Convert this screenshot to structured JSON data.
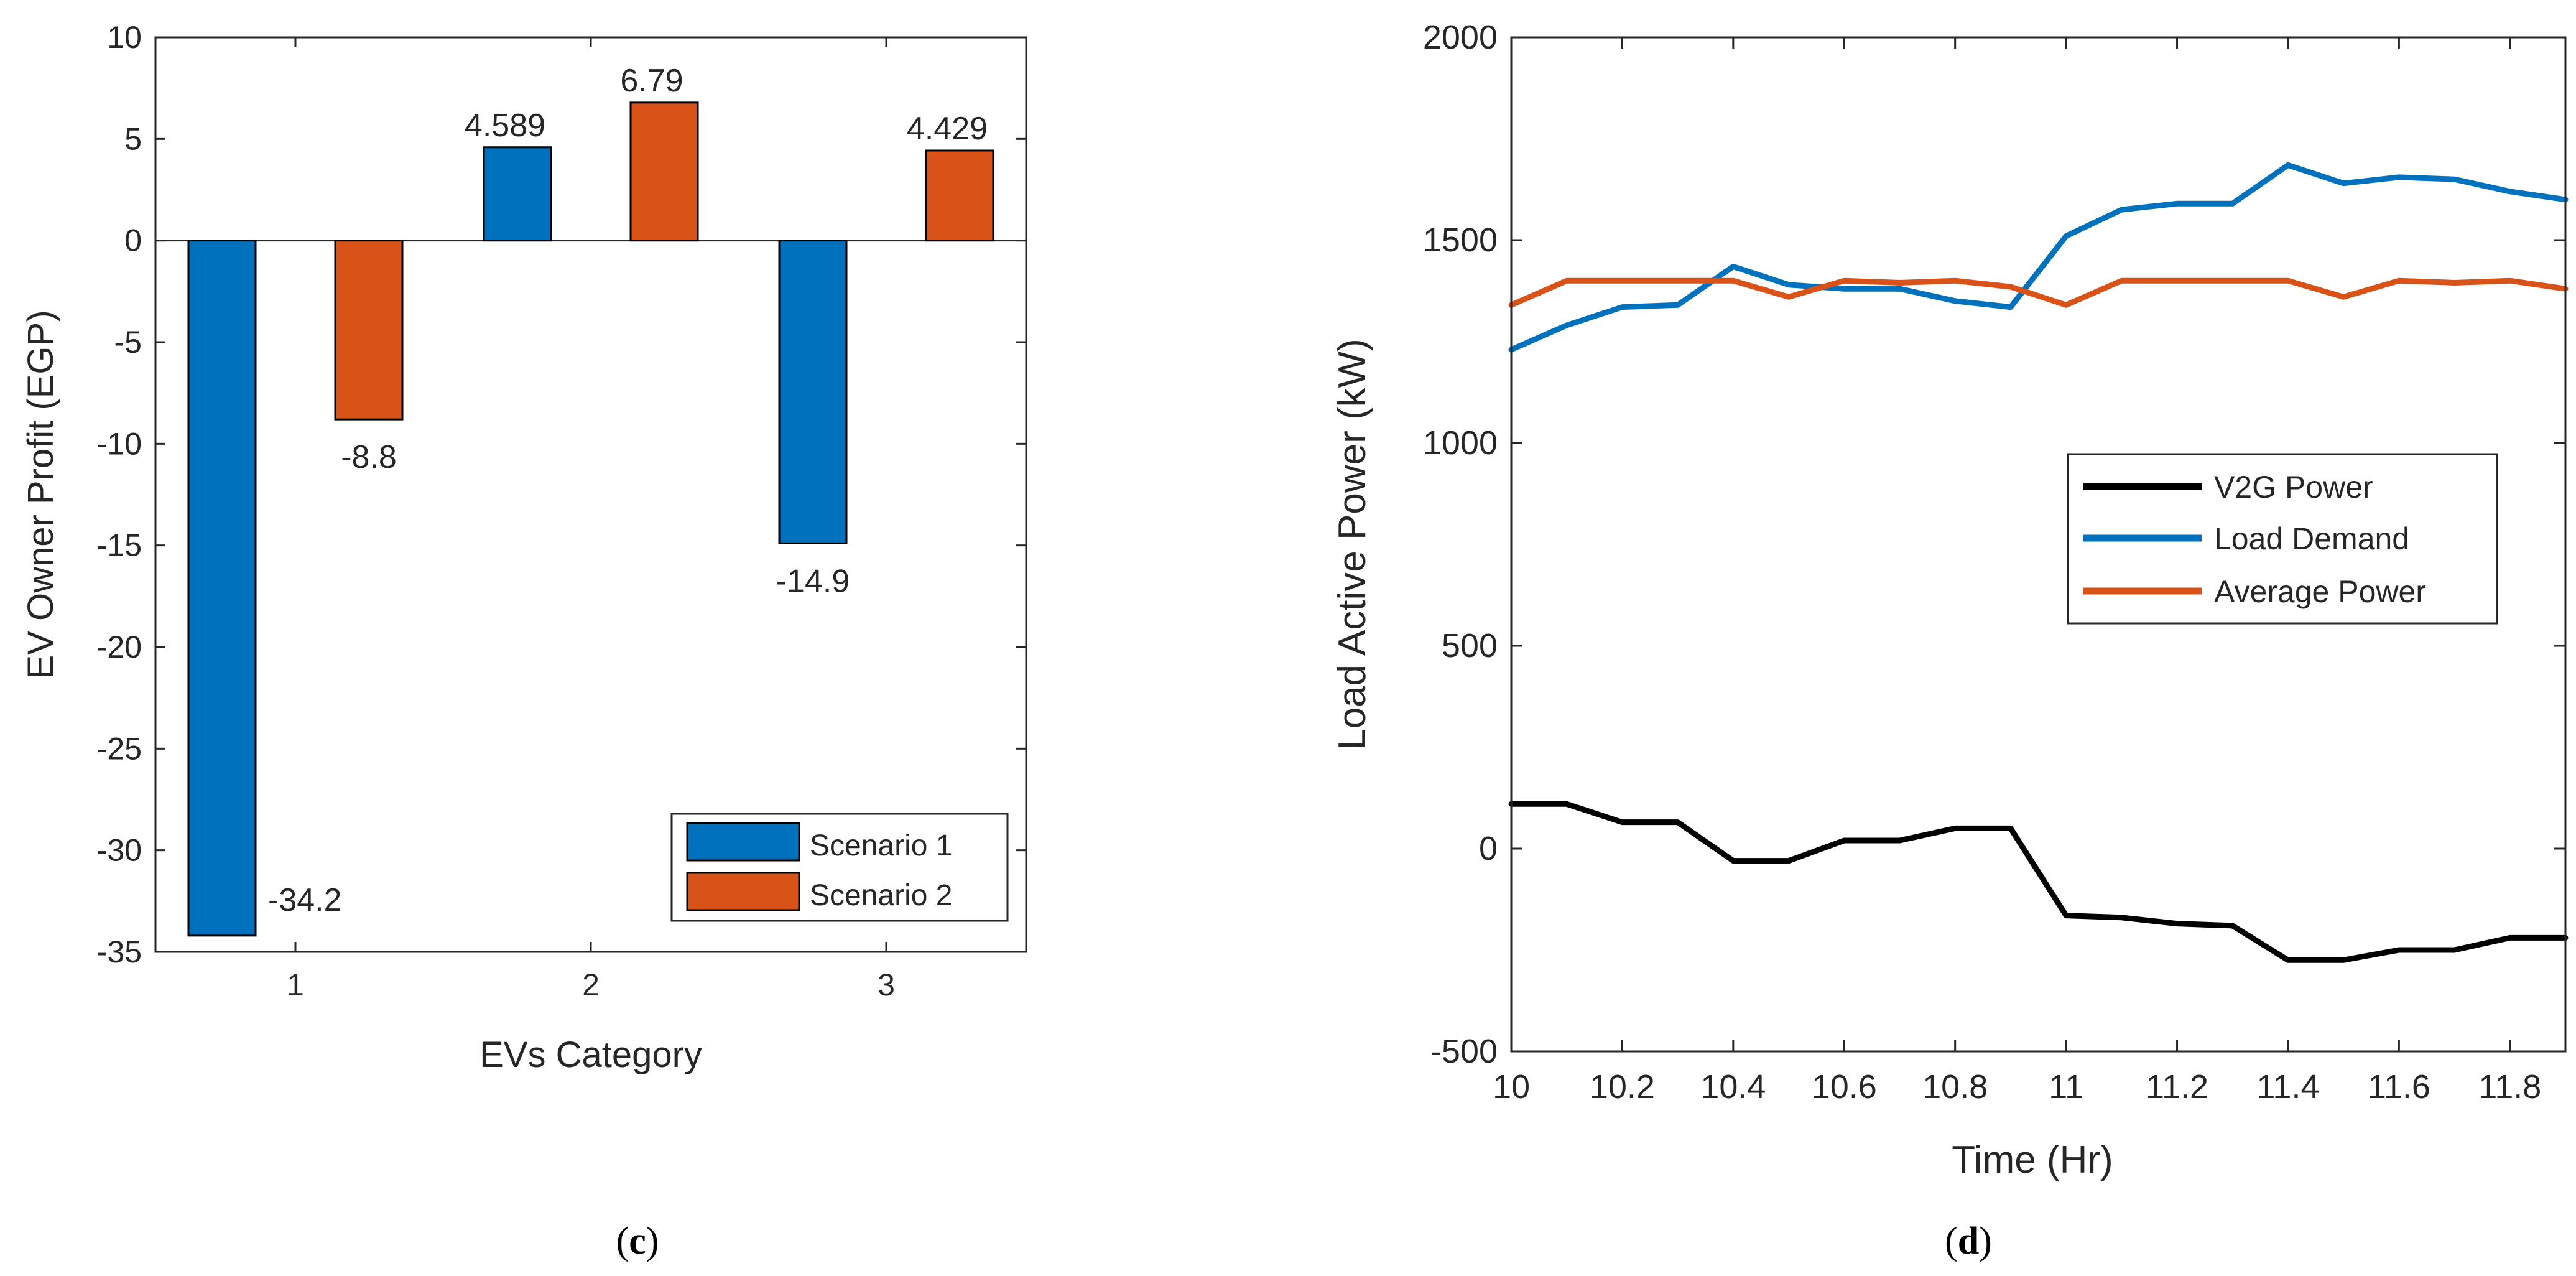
{
  "chart_data": [
    {
      "type": "bar",
      "panel_label": "c",
      "title": "",
      "xlabel": "EVs Category",
      "ylabel": "EV Owner Profit (EGP)",
      "categories": [
        "1",
        "2",
        "3"
      ],
      "ylim": [
        -35,
        10
      ],
      "yticks": [
        10,
        5,
        0,
        -5,
        -10,
        -15,
        -20,
        -25,
        -30,
        -35
      ],
      "ytick_labels": [
        "10",
        "5",
        "0",
        "-5",
        "-10",
        "-15",
        "-20",
        "-25",
        "-30",
        "-35"
      ],
      "grid": false,
      "legend_position": "bottom-right",
      "series": [
        {
          "name": "Scenario 1",
          "color": "#0072BD",
          "values": [
            -34.2,
            4.589,
            -14.9
          ],
          "labels": [
            "-34.2",
            "4.589",
            "-14.9"
          ]
        },
        {
          "name": "Scenario 2",
          "color": "#D95319",
          "values": [
            -8.8,
            6.79,
            4.429
          ],
          "labels": [
            "-8.8",
            "6.79",
            "4.429"
          ]
        }
      ]
    },
    {
      "type": "line",
      "panel_label": "d",
      "title": "",
      "xlabel": "Time (Hr)",
      "ylabel": "Load Active Power (kW)",
      "xlim": [
        10,
        11.9
      ],
      "ylim": [
        -500,
        2000
      ],
      "xticks": [
        10,
        10.2,
        10.4,
        10.6,
        10.8,
        11,
        11.2,
        11.4,
        11.6,
        11.8
      ],
      "xtick_labels": [
        "10",
        "10.2",
        "10.4",
        "10.6",
        "10.8",
        "11",
        "11.2",
        "11.4",
        "11.6",
        "11.8"
      ],
      "yticks": [
        2000,
        1500,
        1000,
        500,
        0,
        -500
      ],
      "ytick_labels": [
        "2000",
        "1500",
        "1000",
        "500",
        "0",
        "-500"
      ],
      "grid": false,
      "legend_position": "center-right",
      "x": [
        10,
        10.1,
        10.2,
        10.3,
        10.4,
        10.5,
        10.6,
        10.7,
        10.8,
        10.9,
        11,
        11.1,
        11.2,
        11.3,
        11.4,
        11.5,
        11.6,
        11.7,
        11.8,
        11.9
      ],
      "series": [
        {
          "name": "V2G Power",
          "color": "#000000",
          "values": [
            110,
            110,
            65,
            65,
            -30,
            -30,
            20,
            20,
            50,
            50,
            -165,
            -170,
            -185,
            -190,
            -275,
            -275,
            -250,
            -250,
            -220,
            -220
          ]
        },
        {
          "name": "Load Demand",
          "color": "#0072BD",
          "values": [
            1230,
            1290,
            1335,
            1340,
            1435,
            1390,
            1380,
            1380,
            1350,
            1335,
            1510,
            1575,
            1590,
            1590,
            1685,
            1640,
            1655,
            1650,
            1620,
            1600
          ]
        },
        {
          "name": "Average Power",
          "color": "#D95319",
          "values": [
            1340,
            1400,
            1400,
            1400,
            1400,
            1360,
            1400,
            1395,
            1400,
            1385,
            1340,
            1400,
            1400,
            1400,
            1400,
            1360,
            1400,
            1395,
            1400,
            1380
          ]
        }
      ]
    }
  ]
}
